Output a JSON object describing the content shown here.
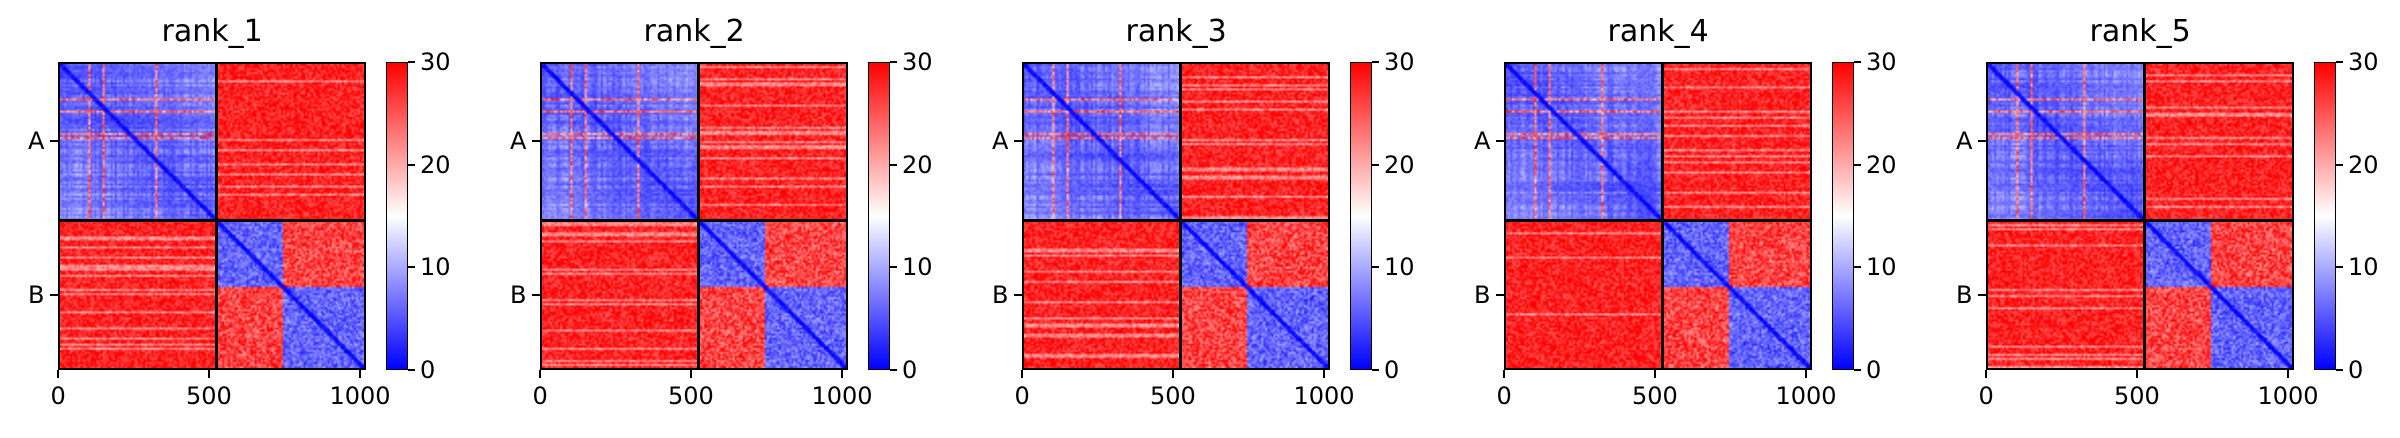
{
  "chart_data": [
    {
      "type": "heatmap",
      "title": "rank_1",
      "chains": [
        "A",
        "B"
      ],
      "chain_boundary": 525,
      "xticks": [
        "0",
        "500",
        "1000"
      ],
      "xlim": [
        0,
        1020
      ],
      "colorbar": {
        "min": 0,
        "max": 30,
        "ticks": [
          "0",
          "10",
          "20",
          "30"
        ],
        "colormap": "bwr"
      }
    },
    {
      "type": "heatmap",
      "title": "rank_2",
      "chains": [
        "A",
        "B"
      ],
      "chain_boundary": 525,
      "xticks": [
        "0",
        "500",
        "1000"
      ],
      "xlim": [
        0,
        1020
      ],
      "colorbar": {
        "min": 0,
        "max": 30,
        "ticks": [
          "0",
          "10",
          "20",
          "30"
        ],
        "colormap": "bwr"
      }
    },
    {
      "type": "heatmap",
      "title": "rank_3",
      "chains": [
        "A",
        "B"
      ],
      "chain_boundary": 525,
      "xticks": [
        "0",
        "500",
        "1000"
      ],
      "xlim": [
        0,
        1020
      ],
      "colorbar": {
        "min": 0,
        "max": 30,
        "ticks": [
          "0",
          "10",
          "20",
          "30"
        ],
        "colormap": "bwr"
      }
    },
    {
      "type": "heatmap",
      "title": "rank_4",
      "chains": [
        "A",
        "B"
      ],
      "chain_boundary": 525,
      "xticks": [
        "0",
        "500",
        "1000"
      ],
      "xlim": [
        0,
        1020
      ],
      "colorbar": {
        "min": 0,
        "max": 30,
        "ticks": [
          "0",
          "10",
          "20",
          "30"
        ],
        "colormap": "bwr"
      }
    },
    {
      "type": "heatmap",
      "title": "rank_5",
      "chains": [
        "A",
        "B"
      ],
      "chain_boundary": 525,
      "xticks": [
        "0",
        "500",
        "1000"
      ],
      "xlim": [
        0,
        1020
      ],
      "colorbar": {
        "min": 0,
        "max": 30,
        "ticks": [
          "0",
          "10",
          "20",
          "30"
        ],
        "colormap": "bwr"
      }
    }
  ],
  "colors": {
    "low": "#0000ff",
    "mid": "#ffffff",
    "high": "#ff0000"
  }
}
